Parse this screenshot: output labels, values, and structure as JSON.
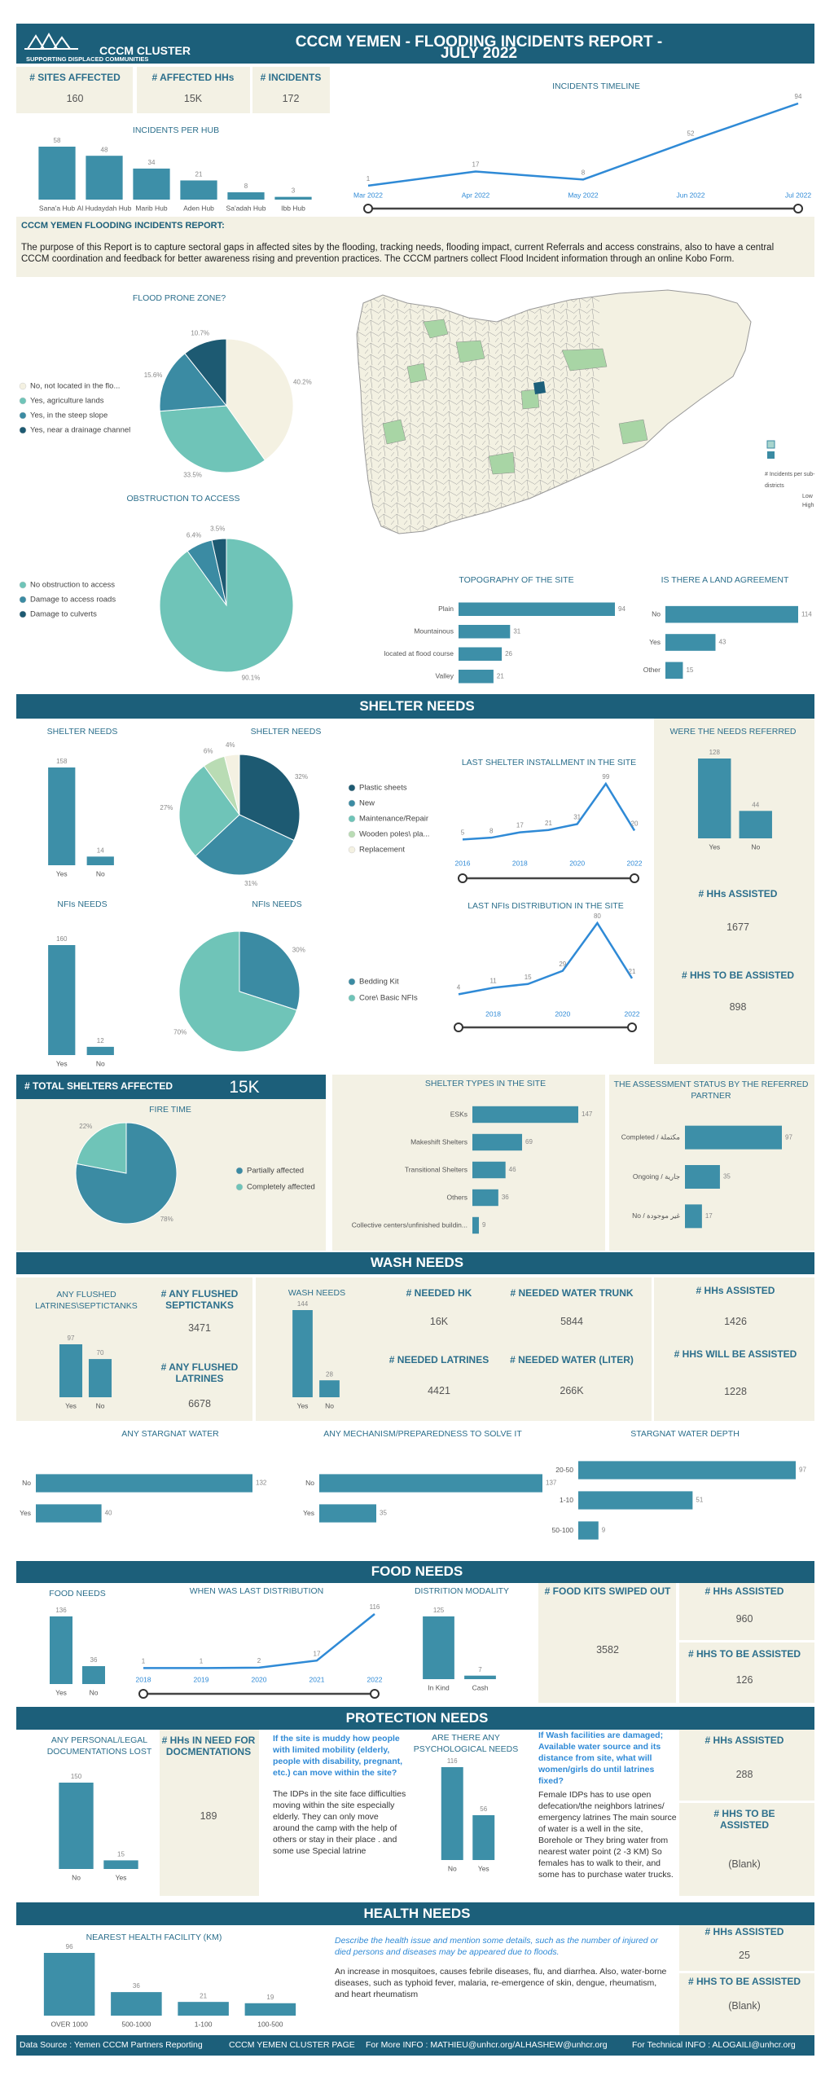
{
  "header": {
    "logo_title": "CCCM CLUSTER",
    "logo_subtitle": "SUPPORTING DISPLACED COMMUNITIES",
    "title": "CCCM YEMEN - FLOODING INCIDENTS REPORT - JULY 2022"
  },
  "sections": [
    "SHELTER NEEDS",
    "WASH NEEDS",
    "FOOD NEEDS",
    "PROTECTION NEEDS",
    "HEALTH NEEDS"
  ],
  "report": {
    "title": "CCCM YEMEN FLOODING INCIDENTS REPORT:",
    "text": "The purpose of this Report is to capture sectoral gaps in affected sites by the flooding, tracking needs, flooding impact, current Referrals and access constrains, also to have a central CCCM coordination and feedback for better awareness rising and prevention practices. The CCCM partners collect Flood Incident information through an online Kobo Form."
  },
  "map": {
    "legend_title": "# Incidents per sub-districts",
    "low": "Low",
    "high": "High"
  },
  "kpis": [
    {
      "label": "# SITES AFFECTED",
      "value": "160"
    },
    {
      "label": "# AFFECTED HHs",
      "value": "15K"
    },
    {
      "label": "# INCIDENTS",
      "value": "172"
    },
    {
      "label": "# TOTAL SHELTERS AFFECTED",
      "value": "15K"
    },
    {
      "label": "# HHs ASSISTED",
      "value": "1677"
    },
    {
      "label": "# HHS TO BE ASSISTED",
      "value": "898"
    },
    {
      "label": "# ANY FLUSHED SEPTICTANKS",
      "value": "3471"
    },
    {
      "label": "# ANY FLUSHED LATRINES",
      "value": "6678"
    },
    {
      "label": "# NEEDED HK",
      "value": "16K"
    },
    {
      "label": "# NEEDED WATER TRUNK",
      "value": "5844"
    },
    {
      "label": "# NEEDED LATRINES",
      "value": "4421"
    },
    {
      "label": "# NEEDED WATER (LITER)",
      "value": "266K"
    },
    {
      "label": "# HHs ASSISTED",
      "value": "1426"
    },
    {
      "label": "# HHS WILL BE ASSISTED",
      "value": "1228"
    },
    {
      "label": "# FOOD KITS SWIPED OUT",
      "value": "3582"
    },
    {
      "label": "# HHs ASSISTED",
      "value": "960"
    },
    {
      "label": "# HHS TO BE ASSISTED",
      "value": "126"
    },
    {
      "label": "# HHs IN NEED FOR DOCMENTATIONS",
      "value": "189"
    },
    {
      "label": "# HHs ASSISTED",
      "value": "288"
    },
    {
      "label": "# HHS TO BE ASSISTED",
      "value": "(Blank)"
    },
    {
      "label": "# HHs ASSISTED",
      "value": "25"
    },
    {
      "label": "# HHS TO BE ASSISTED",
      "value": "(Blank)"
    }
  ],
  "texts": [
    {
      "question": "If the site is muddy how people with limited mobility (elderly, people with disability, pregnant, etc.) can move within the site?",
      "answer": "The IDPs in the site face difficulties moving within the site especially elderly. They can only move around the camp with the help of others or stay in their place . and some use Special latrine"
    },
    {
      "question": "If Wash facilities are damaged; Available water source and its distance from site, what will women/girls do until latrines fixed?",
      "answer": "Female IDPs has to use open defecation/the neighbors latrines/ emergency latrines The main source of water is a well in the site, Borehole or They bring water from nearest water point (2 -3 KM) So females has to walk to their, and some has to purchase water trucks."
    },
    {
      "question": "Describe the health issue and mention some details, such as the number of injured or died persons and diseases may be appeared due to floods.",
      "answer": "An increase in mosquitoes, causes febrile diseases, flu, and diarrhea. Also, water-borne diseases, such as typhoid fever, malaria, re-emergence of skin, dengue, rheumatism, and heart rheumatism"
    }
  ],
  "footer": [
    "Data Source : Yemen CCCM Partners Reporting",
    "CCCM YEMEN CLUSTER PAGE",
    "For More INFO : MATHIEU@unhcr.org/ALHASHEW@unhcr.org",
    "For Technical INFO : ALOGAILI@unhcr.org"
  ],
  "chart_data": [
    {
      "type": "bar",
      "title": "INCIDENTS PER HUB",
      "categories": [
        "Sana'a Hub",
        "Al Hudaydah Hub",
        "Marib Hub",
        "Aden Hub",
        "Sa'adah Hub",
        "Ibb Hub"
      ],
      "values": [
        58,
        48,
        34,
        21,
        8,
        3
      ],
      "color": "#3d8fa8"
    },
    {
      "type": "line",
      "title": "INCIDENTS TIMELINE",
      "categories": [
        "Mar 2022",
        "Apr 2022",
        "May 2022",
        "Jun 2022",
        "Jul 2022"
      ],
      "values": [
        1,
        17,
        8,
        52,
        94
      ],
      "color": "#2f8ad6"
    },
    {
      "type": "pie",
      "title": "FLOOD PRONE ZONE?",
      "categories": [
        "No, not located in the flo...",
        "Yes, agriculture lands",
        "Yes, in the steep slope",
        "Yes, near a drainage channel"
      ],
      "values": [
        40.2,
        33.5,
        15.6,
        10.7
      ],
      "value_labels": [
        "40.2%",
        "33.5%",
        "15.6%",
        "10.7%"
      ],
      "colors": [
        "#f4f1e2",
        "#6fc4b8",
        "#3b8ba3",
        "#1d5a72"
      ]
    },
    {
      "type": "pie",
      "title": "OBSTRUCTION TO ACCESS",
      "categories": [
        "No obstruction to access",
        "Damage to access roads",
        "Damage to culverts"
      ],
      "values": [
        90.1,
        6.4,
        3.5
      ],
      "value_labels": [
        "90.1%",
        "6.4%",
        "3.5%"
      ],
      "colors": [
        "#6fc4b8",
        "#3b8ba3",
        "#1d5a72"
      ]
    },
    {
      "type": "bar",
      "orientation": "horizontal",
      "title": "TOPOGRAPHY OF THE SITE",
      "categories": [
        "Plain",
        "Mountainous",
        "located at flood course",
        "Valley"
      ],
      "values": [
        94,
        31,
        26,
        21
      ],
      "color": "#3d8fa8"
    },
    {
      "type": "bar",
      "orientation": "horizontal",
      "title": "IS THERE A LAND AGREEMENT",
      "categories": [
        "No",
        "Yes",
        "Other"
      ],
      "values": [
        114,
        43,
        15
      ],
      "color": "#3d8fa8"
    },
    {
      "type": "bar",
      "title": "SHELTER NEEDS",
      "categories": [
        "Yes",
        "No"
      ],
      "values": [
        158,
        14
      ],
      "color": "#3d8fa8"
    },
    {
      "type": "pie",
      "title": "SHELTER NEEDS",
      "categories": [
        "Plastic sheets",
        "New",
        "Maintenance/Repair",
        "Wooden poles\\ pla...",
        "Replacement"
      ],
      "values": [
        32,
        31,
        27,
        6,
        4
      ],
      "value_labels": [
        "32%",
        "31%",
        "27%",
        "6%",
        "4%"
      ],
      "colors": [
        "#1d5a72",
        "#3b8ba3",
        "#6fc4b8",
        "#b9dcb4",
        "#f4f1e2"
      ]
    },
    {
      "type": "line",
      "title": "LAST SHELTER INSTALLMENT IN THE SITE",
      "categories": [
        "2016",
        null,
        "2018",
        null,
        "2020",
        null,
        "2022"
      ],
      "values": [
        5,
        8,
        17,
        21,
        31,
        99,
        20
      ],
      "color": "#2f8ad6"
    },
    {
      "type": "bar",
      "title": "WERE THE NEEDS REFERRED",
      "categories": [
        "Yes",
        "No"
      ],
      "values": [
        128,
        44
      ],
      "color": "#3d8fa8"
    },
    {
      "type": "bar",
      "title": "NFIs NEEDS",
      "categories": [
        "Yes",
        "No"
      ],
      "values": [
        160,
        12
      ],
      "color": "#3d8fa8"
    },
    {
      "type": "pie",
      "title": "NFIs NEEDS",
      "categories": [
        "Bedding Kit",
        "Core\\ Basic NFIs"
      ],
      "values": [
        30,
        70
      ],
      "value_labels": [
        "30%",
        "70%"
      ],
      "colors": [
        "#3b8ba3",
        "#6fc4b8"
      ]
    },
    {
      "type": "line",
      "title": "LAST NFIs DISTRIBUTION IN THE SITE",
      "categories": [
        null,
        "2018",
        null,
        "2020",
        null,
        "2022"
      ],
      "values": [
        4,
        11,
        15,
        29,
        80,
        21
      ],
      "color": "#2f8ad6"
    },
    {
      "type": "pie",
      "title": "FIRE TIME",
      "categories": [
        "Partially affected",
        "Completely affected"
      ],
      "values": [
        78,
        22
      ],
      "value_labels": [
        "78%",
        "22%"
      ],
      "colors": [
        "#3b8ba3",
        "#6fc4b8"
      ]
    },
    {
      "type": "bar",
      "orientation": "horizontal",
      "title": "SHELTER TYPES IN THE SITE",
      "categories": [
        "ESKs",
        "Makeshift Shelters",
        "Transitional Shelters",
        "Others",
        "Collective centers/unfinished buildin..."
      ],
      "values": [
        147,
        69,
        46,
        36,
        9
      ],
      "color": "#3d8fa8"
    },
    {
      "type": "bar",
      "orientation": "horizontal",
      "title": "THE ASSESSMENT STATUS BY THE REFERRED PARTNER",
      "categories": [
        "Completed / مكتملة",
        "Ongoing / جارية",
        "No / غير موجودة"
      ],
      "values": [
        97,
        35,
        17
      ],
      "color": "#3d8fa8"
    },
    {
      "type": "bar",
      "title": "ANY FLUSHED LATRINES\\SEPTICTANKS",
      "categories": [
        "Yes",
        "No"
      ],
      "values": [
        97,
        70
      ],
      "color": "#3d8fa8"
    },
    {
      "type": "bar",
      "title": "WASH NEEDS",
      "categories": [
        "Yes",
        "No"
      ],
      "values": [
        144,
        28
      ],
      "color": "#3d8fa8"
    },
    {
      "type": "bar",
      "orientation": "horizontal",
      "title": "ANY STARGNAT WATER",
      "categories": [
        "No",
        "Yes"
      ],
      "values": [
        132,
        40
      ],
      "color": "#3d8fa8"
    },
    {
      "type": "bar",
      "orientation": "horizontal",
      "title": "ANY MECHANISM/PREPAREDNESS TO SOLVE IT",
      "categories": [
        "No",
        "Yes"
      ],
      "values": [
        137,
        35
      ],
      "color": "#3d8fa8"
    },
    {
      "type": "bar",
      "orientation": "horizontal",
      "title": "STARGNAT WATER DEPTH",
      "categories": [
        "20-50",
        "1-10",
        "50-100"
      ],
      "values": [
        97,
        51,
        9
      ],
      "color": "#3d8fa8"
    },
    {
      "type": "bar",
      "title": "FOOD NEEDS",
      "categories": [
        "Yes",
        "No"
      ],
      "values": [
        136,
        36
      ],
      "color": "#3d8fa8"
    },
    {
      "type": "line",
      "title": "WHEN WAS LAST DISTRIBUTION",
      "categories": [
        "2018",
        "2019",
        "2020",
        "2021",
        "2022"
      ],
      "values": [
        1,
        1,
        2,
        17,
        116
      ],
      "color": "#2f8ad6"
    },
    {
      "type": "bar",
      "title": "DISTRITION MODALITY",
      "categories": [
        "In Kind",
        "Cash"
      ],
      "values": [
        125,
        7
      ],
      "color": "#3d8fa8"
    },
    {
      "type": "bar",
      "title": "ANY PERSONAL/LEGAL DOCUMENTATIONS LOST",
      "categories": [
        "No",
        "Yes"
      ],
      "values": [
        150,
        15
      ],
      "color": "#3d8fa8"
    },
    {
      "type": "bar",
      "title": "ARE THERE ANY PSYCHOLOGICAL NEEDS",
      "categories": [
        "No",
        "Yes"
      ],
      "values": [
        116,
        56
      ],
      "color": "#3d8fa8"
    },
    {
      "type": "bar",
      "title": "NEAREST HEALTH FACILITY (KM)",
      "categories": [
        "OVER 1000",
        "500-1000",
        "1-100",
        "100-500"
      ],
      "values": [
        96,
        36,
        21,
        19
      ],
      "color": "#3d8fa8"
    }
  ]
}
